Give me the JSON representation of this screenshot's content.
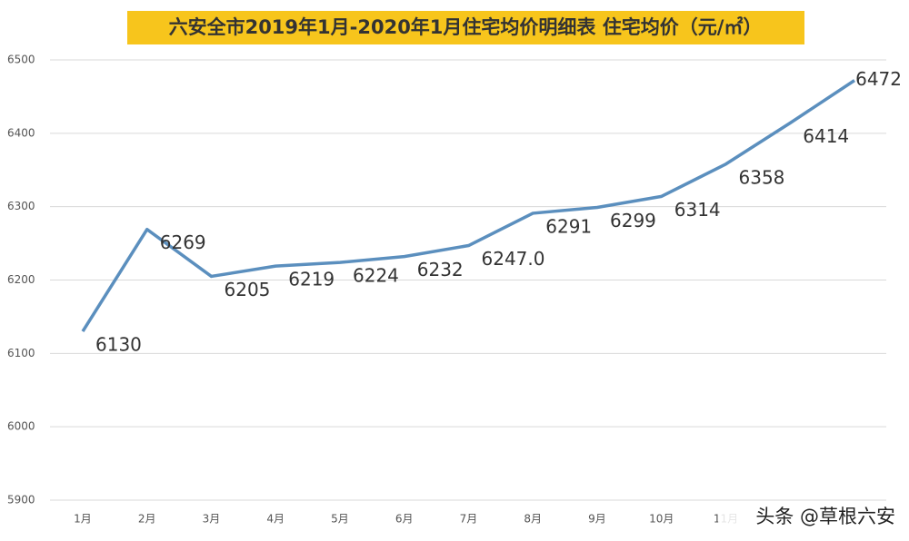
{
  "chart_data": {
    "type": "line",
    "title": "六安全市2019年1月-2020年1月住宅均价明细表 住宅均价（元/㎡）",
    "categories": [
      "1月",
      "2月",
      "3月",
      "4月",
      "5月",
      "6月",
      "7月",
      "8月",
      "9月",
      "10月",
      "11月",
      null,
      null
    ],
    "series": [
      {
        "name": "住宅均价",
        "color": "#5b8fbe",
        "values": [
          6130,
          6269,
          6205,
          6219,
          6224,
          6232,
          6247,
          6291,
          6299,
          6314,
          6358,
          6414,
          6472
        ],
        "value_labels": [
          "6130",
          "6269",
          "6205",
          "6219",
          "6224",
          "6232",
          "6247.0",
          "6291",
          "6299",
          "6314",
          "6358",
          "6414",
          "6472"
        ]
      }
    ],
    "ylim": [
      5900,
      6500
    ],
    "yticks": [
      5900,
      6000,
      6100,
      6200,
      6300,
      6400,
      6500
    ],
    "grid": true,
    "watermark": "头条 @草根六安"
  }
}
